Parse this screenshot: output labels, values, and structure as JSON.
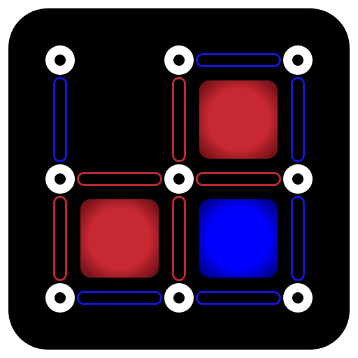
{
  "colors": {
    "background": "#000000",
    "dot": "#ffffff",
    "player_red": "#c82832",
    "player_blue": "#0000ff",
    "edge_red": "#b4282d",
    "edge_blue": "#1414d2"
  },
  "grid": {
    "rows": 3,
    "cols": 3
  },
  "edges": {
    "horizontal": [
      [
        "none",
        "blue"
      ],
      [
        "red",
        "red"
      ],
      [
        "blue",
        "blue"
      ]
    ],
    "vertical": [
      [
        "blue",
        "red",
        "blue"
      ],
      [
        "red",
        "red",
        "blue"
      ]
    ]
  },
  "boxes": [
    [
      "none",
      "red"
    ],
    [
      "red",
      "blue"
    ]
  ]
}
